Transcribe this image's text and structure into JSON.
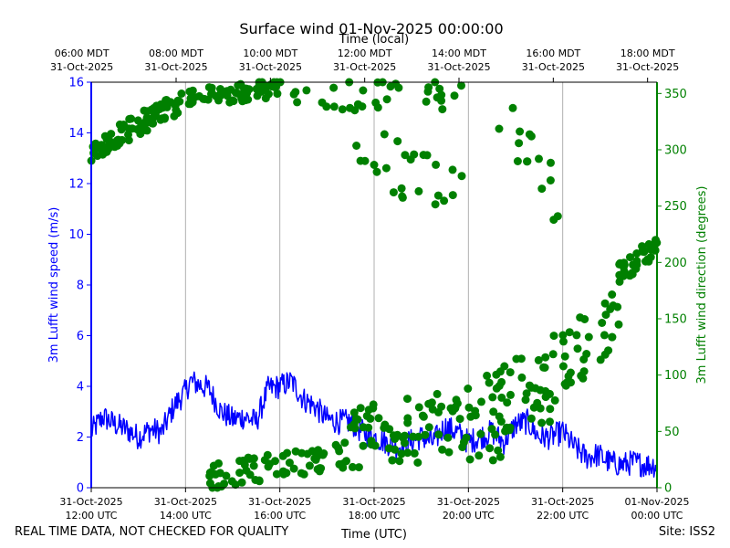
{
  "chart_data": {
    "type": "line",
    "title": "Surface wind 01-Nov-2025 00:00:00",
    "top_axis_title": "Time (local)",
    "xlabel": "Time (UTC)",
    "ylabel_left": "3m Lufft wind speed (m/s)",
    "ylabel_right": "3m Lufft wind direction (degrees)",
    "x_unit": "hours UTC since 31-Oct-2025 12:00",
    "xlim": [
      0,
      12
    ],
    "ylim_left": [
      0,
      16
    ],
    "ylim_right": [
      0,
      360
    ],
    "left_ticks": [
      "0",
      "2",
      "4",
      "6",
      "8",
      "10",
      "12",
      "14",
      "16"
    ],
    "right_ticks": [
      "0",
      "50",
      "100",
      "150",
      "200",
      "250",
      "300",
      "350"
    ],
    "grid": "vertical",
    "bottom_ticks": [
      {
        "x": 0,
        "line1": "31-Oct-2025",
        "line2": "12:00 UTC"
      },
      {
        "x": 2,
        "line1": "31-Oct-2025",
        "line2": "14:00 UTC"
      },
      {
        "x": 4,
        "line1": "31-Oct-2025",
        "line2": "16:00 UTC"
      },
      {
        "x": 6,
        "line1": "31-Oct-2025",
        "line2": "18:00 UTC"
      },
      {
        "x": 8,
        "line1": "31-Oct-2025",
        "line2": "20:00 UTC"
      },
      {
        "x": 10,
        "line1": "31-Oct-2025",
        "line2": "22:00 UTC"
      },
      {
        "x": 12,
        "line1": "01-Nov-2025",
        "line2": "00:00 UTC"
      }
    ],
    "top_ticks": [
      {
        "x": -0.2,
        "line1": "06:00 MDT",
        "line2": "31-Oct-2025"
      },
      {
        "x": 1.8,
        "line1": "08:00 MDT",
        "line2": "31-Oct-2025"
      },
      {
        "x": 3.8,
        "line1": "10:00 MDT",
        "line2": "31-Oct-2025"
      },
      {
        "x": 5.8,
        "line1": "12:00 MDT",
        "line2": "31-Oct-2025"
      },
      {
        "x": 7.8,
        "line1": "14:00 MDT",
        "line2": "31-Oct-2025"
      },
      {
        "x": 9.8,
        "line1": "16:00 MDT",
        "line2": "31-Oct-2025"
      },
      {
        "x": 11.8,
        "line1": "18:00 MDT",
        "line2": "31-Oct-2025"
      }
    ],
    "series": [
      {
        "name": "3m Lufft wind speed",
        "axis": "left",
        "color": "#0000ff",
        "style": "line",
        "x": [
          0.0,
          0.25,
          0.5,
          0.75,
          1.0,
          1.25,
          1.5,
          1.75,
          2.0,
          2.1,
          2.25,
          2.5,
          2.75,
          3.0,
          3.25,
          3.5,
          3.75,
          4.0,
          4.25,
          4.5,
          4.75,
          5.0,
          5.25,
          5.5,
          5.75,
          6.0,
          6.25,
          6.5,
          6.75,
          7.0,
          7.25,
          7.5,
          7.75,
          8.0,
          8.25,
          8.5,
          8.75,
          9.0,
          9.25,
          9.5,
          9.75,
          10.0,
          10.25,
          10.5,
          10.75,
          11.0,
          11.25,
          11.5,
          11.75,
          12.0
        ],
        "y": [
          2.2,
          2.8,
          2.5,
          2.3,
          2.0,
          2.3,
          2.2,
          3.2,
          3.8,
          4.2,
          4.1,
          3.9,
          3.0,
          2.7,
          2.8,
          2.6,
          3.9,
          4.0,
          4.2,
          3.5,
          3.2,
          2.7,
          2.6,
          2.6,
          2.2,
          2.0,
          1.8,
          1.6,
          1.8,
          2.0,
          1.8,
          2.4,
          2.2,
          1.8,
          2.0,
          2.2,
          1.8,
          2.5,
          2.6,
          2.0,
          2.0,
          2.2,
          1.6,
          1.2,
          1.3,
          1.0,
          0.9,
          1.0,
          0.9,
          0.9
        ],
        "noise": 0.5
      },
      {
        "name": "3m Lufft wind direction",
        "axis": "right",
        "color": "#008000",
        "style": "markers",
        "clusters": [
          {
            "x_range": [
              0.0,
              2.0
            ],
            "y_start": 300,
            "y_end": 345,
            "count": 80,
            "spread": 10
          },
          {
            "x_range": [
              2.0,
              4.0
            ],
            "y_start": 345,
            "y_end": 355,
            "count": 60,
            "spread": 8
          },
          {
            "x_range": [
              4.0,
              8.0
            ],
            "y_start": 350,
            "y_end": 350,
            "count": 35,
            "spread": 15
          },
          {
            "x_range": [
              5.5,
              8.0
            ],
            "y_start": 300,
            "y_end": 250,
            "count": 25,
            "spread": 30
          },
          {
            "x_range": [
              2.5,
              5.5
            ],
            "y_start": 10,
            "y_end": 30,
            "count": 70,
            "spread": 12
          },
          {
            "x_range": [
              5.5,
              8.0
            ],
            "y_start": 40,
            "y_end": 60,
            "count": 70,
            "spread": 30
          },
          {
            "x_range": [
              8.0,
              10.0
            ],
            "y_start": 50,
            "y_end": 100,
            "count": 60,
            "spread": 40
          },
          {
            "x_range": [
              10.0,
              11.2
            ],
            "y_start": 110,
            "y_end": 150,
            "count": 35,
            "spread": 30
          },
          {
            "x_range": [
              11.2,
              12.0
            ],
            "y_start": 190,
            "y_end": 215,
            "count": 40,
            "spread": 10
          },
          {
            "x_range": [
              8.5,
              10.0
            ],
            "y_start": 340,
            "y_end": 250,
            "count": 15,
            "spread": 25
          }
        ]
      }
    ]
  },
  "footer": {
    "disclaimer": "REAL TIME DATA, NOT CHECKED FOR QUALITY",
    "site": "Site: ISS2"
  }
}
